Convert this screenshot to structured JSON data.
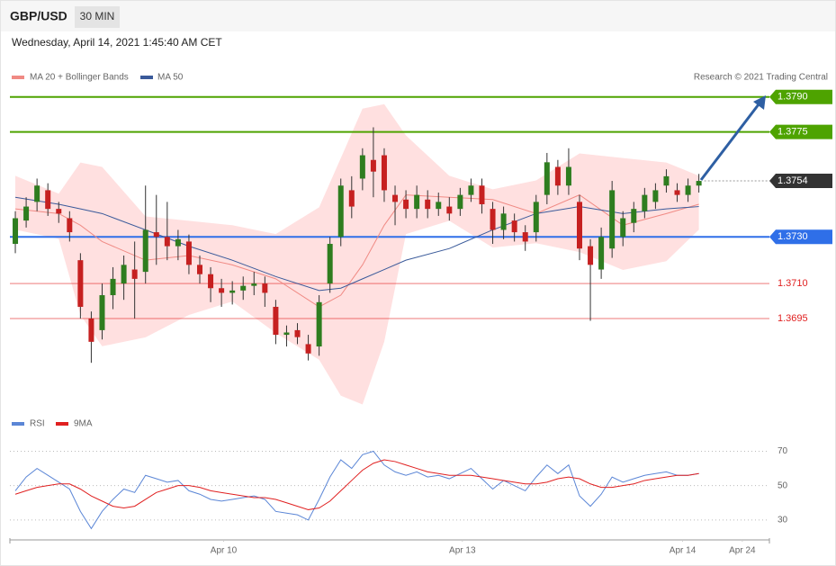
{
  "header": {
    "symbol": "GBP/USD",
    "interval": "30 MIN",
    "datetime": "Wednesday, April 14, 2021 1:45:40 AM CET",
    "credit": "Research © 2021 Trading Central"
  },
  "chart_data": [
    {
      "type": "candlestick",
      "up_color": "#2e7d1f",
      "down_color": "#c62020",
      "ylim": [
        1.3656,
        1.3793
      ],
      "candles": [
        [
          1.3727,
          1.3741,
          1.3723,
          1.3738
        ],
        [
          1.3737,
          1.3747,
          1.3734,
          1.3743
        ],
        [
          1.3745,
          1.3755,
          1.3741,
          1.3752
        ],
        [
          1.375,
          1.3753,
          1.3739,
          1.3742
        ],
        [
          1.3742,
          1.3745,
          1.3736,
          1.374
        ],
        [
          1.3738,
          1.3741,
          1.3728,
          1.3732
        ],
        [
          1.372,
          1.3723,
          1.3695,
          1.37
        ],
        [
          1.3695,
          1.3698,
          1.3676,
          1.3685
        ],
        [
          1.369,
          1.371,
          1.3686,
          1.3705
        ],
        [
          1.3705,
          1.3717,
          1.3699,
          1.3712
        ],
        [
          1.371,
          1.3722,
          1.3703,
          1.3718
        ],
        [
          1.3716,
          1.3728,
          1.3695,
          1.3712
        ],
        [
          1.3715,
          1.3752,
          1.371,
          1.3733
        ],
        [
          1.3732,
          1.3748,
          1.3718,
          1.373
        ],
        [
          1.373,
          1.3745,
          1.372,
          1.3726
        ],
        [
          1.3726,
          1.3733,
          1.372,
          1.3729
        ],
        [
          1.3728,
          1.3731,
          1.3714,
          1.3718
        ],
        [
          1.3718,
          1.3722,
          1.371,
          1.3714
        ],
        [
          1.3714,
          1.3717,
          1.3702,
          1.3708
        ],
        [
          1.3708,
          1.3712,
          1.37,
          1.3706
        ],
        [
          1.3706,
          1.3711,
          1.3701,
          1.3707
        ],
        [
          1.3707,
          1.3713,
          1.3703,
          1.3709
        ],
        [
          1.3709,
          1.3715,
          1.3705,
          1.371
        ],
        [
          1.371,
          1.3713,
          1.37,
          1.3706
        ],
        [
          1.37,
          1.3703,
          1.3684,
          1.3688
        ],
        [
          1.3688,
          1.3692,
          1.3683,
          1.3689
        ],
        [
          1.369,
          1.3693,
          1.3684,
          1.3687
        ],
        [
          1.3684,
          1.3688,
          1.3677,
          1.368
        ],
        [
          1.3683,
          1.3705,
          1.3679,
          1.3702
        ],
        [
          1.371,
          1.373,
          1.3706,
          1.3727
        ],
        [
          1.373,
          1.3755,
          1.3726,
          1.3752
        ],
        [
          1.375,
          1.3756,
          1.3738,
          1.3743
        ],
        [
          1.3755,
          1.3768,
          1.375,
          1.3765
        ],
        [
          1.3763,
          1.3777,
          1.3747,
          1.3758
        ],
        [
          1.3765,
          1.3768,
          1.3745,
          1.375
        ],
        [
          1.3748,
          1.3752,
          1.3735,
          1.3745
        ],
        [
          1.3746,
          1.375,
          1.3738,
          1.3742
        ],
        [
          1.3742,
          1.3752,
          1.3738,
          1.3748
        ],
        [
          1.3746,
          1.375,
          1.3738,
          1.3742
        ],
        [
          1.3742,
          1.3749,
          1.3739,
          1.3745
        ],
        [
          1.3743,
          1.3747,
          1.3737,
          1.374
        ],
        [
          1.3742,
          1.3751,
          1.3739,
          1.3748
        ],
        [
          1.3748,
          1.3755,
          1.3745,
          1.3752
        ],
        [
          1.3752,
          1.3755,
          1.374,
          1.3744
        ],
        [
          1.3742,
          1.3745,
          1.3727,
          1.3733
        ],
        [
          1.3733,
          1.3743,
          1.3729,
          1.374
        ],
        [
          1.3737,
          1.374,
          1.3728,
          1.3732
        ],
        [
          1.3732,
          1.3735,
          1.3724,
          1.3728
        ],
        [
          1.3732,
          1.3748,
          1.3728,
          1.3745
        ],
        [
          1.3748,
          1.3766,
          1.3744,
          1.3762
        ],
        [
          1.376,
          1.3763,
          1.3748,
          1.3752
        ],
        [
          1.3752,
          1.3768,
          1.3748,
          1.376
        ],
        [
          1.3745,
          1.3748,
          1.372,
          1.3725
        ],
        [
          1.3726,
          1.3729,
          1.3694,
          1.3718
        ],
        [
          1.3716,
          1.3734,
          1.3712,
          1.373
        ],
        [
          1.3725,
          1.3754,
          1.3721,
          1.375
        ],
        [
          1.373,
          1.3741,
          1.3726,
          1.3738
        ],
        [
          1.3736,
          1.3745,
          1.3732,
          1.3742
        ],
        [
          1.3741,
          1.3751,
          1.3738,
          1.3748
        ],
        [
          1.3745,
          1.3753,
          1.3742,
          1.375
        ],
        [
          1.3752,
          1.3759,
          1.3749,
          1.3756
        ],
        [
          1.375,
          1.3753,
          1.3745,
          1.3748
        ],
        [
          1.3748,
          1.3755,
          1.3745,
          1.3752
        ],
        [
          1.3752,
          1.3757,
          1.3749,
          1.3754
        ]
      ],
      "x": [
        0,
        4,
        6,
        8,
        12,
        16,
        20,
        24,
        28,
        30,
        32,
        34,
        36,
        40,
        44,
        48,
        52,
        56,
        60,
        63
      ],
      "series": [
        {
          "name": "MA 20 + Bollinger Bands",
          "color": "#f08a84",
          "band_color": "#ffe0e0",
          "values": [
            1.3742,
            1.374,
            1.3735,
            1.3728,
            1.372,
            1.3722,
            1.3718,
            1.3712,
            1.37,
            1.3705,
            1.3718,
            1.3735,
            1.3748,
            1.3747,
            1.3746,
            1.374,
            1.3748,
            1.3735,
            1.374,
            1.3744
          ],
          "upper": [
            1.37562,
            1.37485,
            1.37619,
            1.376,
            1.37388,
            1.37369,
            1.3735,
            1.37312,
            1.37427,
            1.37638,
            1.3785,
            1.37869,
            1.37735,
            1.37562,
            1.37504,
            1.37542,
            1.37658,
            1.37638,
            1.37619,
            1.37562
          ],
          "lower": [
            1.37331,
            1.37292,
            1.36965,
            1.36831,
            1.36869,
            1.36965,
            1.37023,
            1.36888,
            1.36773,
            1.36619,
            1.36581,
            1.3685,
            1.37312,
            1.37369,
            1.37254,
            1.37273,
            1.37235,
            1.37158,
            1.37196,
            1.37331
          ]
        },
        {
          "name": "MA 50",
          "color": "#3a5a9a",
          "values": [
            1.3747,
            1.3744,
            1.3742,
            1.374,
            1.3733,
            1.3726,
            1.372,
            1.3713,
            1.3707,
            1.3708,
            1.3712,
            1.3716,
            1.372,
            1.3725,
            1.3733,
            1.374,
            1.3743,
            1.374,
            1.3742,
            1.3743
          ]
        }
      ],
      "levels": [
        {
          "value": 1.379,
          "label": "1.3790",
          "color": "#4ea300",
          "style": "box"
        },
        {
          "value": 1.3775,
          "label": "1.3775",
          "color": "#4ea300",
          "style": "box"
        },
        {
          "value": 1.3754,
          "label": "1.3754",
          "color": "#333333",
          "style": "current"
        },
        {
          "value": 1.373,
          "label": "1.3730",
          "color": "#2f6fe8",
          "style": "box"
        },
        {
          "value": 1.371,
          "label": "1.3710",
          "color": "#e02020",
          "style": "text"
        },
        {
          "value": 1.3695,
          "label": "1.3695",
          "color": "#e02020",
          "style": "text"
        }
      ]
    },
    {
      "type": "line",
      "series": [
        {
          "name": "RSI",
          "color": "#5b86d6",
          "values": [
            47,
            55,
            60,
            56,
            52,
            48,
            35,
            25,
            35,
            42,
            48,
            46,
            56,
            54,
            52,
            53,
            47,
            45,
            42,
            41,
            42,
            43,
            44,
            42,
            35,
            34,
            33,
            30,
            42,
            55,
            65,
            60,
            68,
            70,
            62,
            58,
            56,
            58,
            55,
            56,
            54,
            57,
            60,
            54,
            48,
            53,
            50,
            47,
            55,
            62,
            57,
            62,
            44,
            38,
            45,
            55,
            52,
            54,
            56,
            57,
            58,
            56,
            56,
            57
          ]
        },
        {
          "name": "9MA",
          "color": "#e02020",
          "values": [
            45,
            47,
            49,
            50,
            51,
            51,
            48,
            44,
            41,
            38,
            37,
            38,
            42,
            46,
            48,
            50,
            50,
            49,
            47,
            46,
            45,
            44,
            43,
            43,
            42,
            40,
            38,
            36,
            37,
            41,
            47,
            53,
            59,
            63,
            65,
            64,
            62,
            60,
            58,
            57,
            56,
            56,
            56,
            55,
            54,
            53,
            52,
            51,
            51,
            52,
            54,
            55,
            54,
            51,
            49,
            49,
            50,
            51,
            53,
            54,
            55,
            56,
            56,
            57
          ]
        }
      ],
      "ylim": [
        20,
        76
      ],
      "yticks": [
        70,
        50,
        30
      ],
      "grid": true,
      "xlim": [
        0,
        70
      ],
      "xticks": [
        {
          "value": 19.7,
          "label": "Apr 10"
        },
        {
          "value": 41.7,
          "label": "Apr 13"
        },
        {
          "value": 62,
          "label": "Apr 14"
        },
        {
          "value": 67.5,
          "label": "Apr 24"
        }
      ]
    }
  ]
}
